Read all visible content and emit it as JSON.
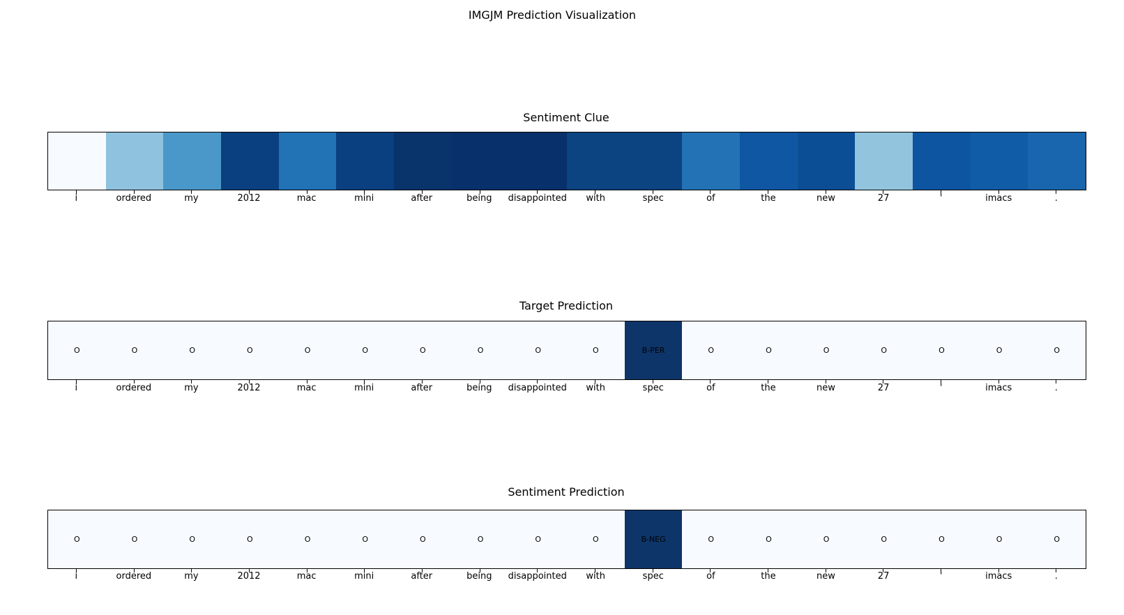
{
  "figure": {
    "suptitle": "IMGJM Prediction Visualization",
    "background": "#ffffff",
    "text_color": "#000000"
  },
  "tokens": [
    "i",
    "ordered",
    "my",
    "2012",
    "mac",
    "mini",
    "after",
    "being",
    "disappointed",
    "with",
    "spec",
    "of",
    "the",
    "new",
    "27",
    "'",
    "imacs",
    "."
  ],
  "panels": [
    {
      "title": "Sentiment Clue",
      "cells": [
        {
          "token": "i",
          "color": "#f7fbff",
          "label": ""
        },
        {
          "token": "ordered",
          "color": "#8fc2de",
          "label": ""
        },
        {
          "token": "my",
          "color": "#4a98c9",
          "label": ""
        },
        {
          "token": "2012",
          "color": "#0a4080",
          "label": ""
        },
        {
          "token": "mac",
          "color": "#2272b6",
          "label": ""
        },
        {
          "token": "mini",
          "color": "#0a4080",
          "label": ""
        },
        {
          "token": "after",
          "color": "#09336b",
          "label": ""
        },
        {
          "token": "being",
          "color": "#08306b",
          "label": ""
        },
        {
          "token": "disappointed",
          "color": "#08306b",
          "label": ""
        },
        {
          "token": "with",
          "color": "#0c4381",
          "label": ""
        },
        {
          "token": "spec",
          "color": "#0c4381",
          "label": ""
        },
        {
          "token": "of",
          "color": "#2372b5",
          "label": ""
        },
        {
          "token": "the",
          "color": "#1057a3",
          "label": ""
        },
        {
          "token": "new",
          "color": "#0b4e95",
          "label": ""
        },
        {
          "token": "27",
          "color": "#92c4de",
          "label": ""
        },
        {
          "token": "'",
          "color": "#0d55a1",
          "label": ""
        },
        {
          "token": "imacs",
          "color": "#115ca6",
          "label": ""
        },
        {
          "token": ".",
          "color": "#1a66ae",
          "label": ""
        }
      ]
    },
    {
      "title": "Target Prediction",
      "cells": [
        {
          "token": "i",
          "color": "#f7fbff",
          "label": "O"
        },
        {
          "token": "ordered",
          "color": "#f7fbff",
          "label": "O"
        },
        {
          "token": "my",
          "color": "#f7fbff",
          "label": "O"
        },
        {
          "token": "2012",
          "color": "#f7fbff",
          "label": "O"
        },
        {
          "token": "mac",
          "color": "#f7fbff",
          "label": "O"
        },
        {
          "token": "mini",
          "color": "#f7fbff",
          "label": "O"
        },
        {
          "token": "after",
          "color": "#f7fbff",
          "label": "O"
        },
        {
          "token": "being",
          "color": "#f7fbff",
          "label": "O"
        },
        {
          "token": "disappointed",
          "color": "#f7fbff",
          "label": "O"
        },
        {
          "token": "with",
          "color": "#f7fbff",
          "label": "O"
        },
        {
          "token": "spec",
          "color": "#0d3569",
          "label": "B-PER"
        },
        {
          "token": "of",
          "color": "#f7fbff",
          "label": "O"
        },
        {
          "token": "the",
          "color": "#f7fbff",
          "label": "O"
        },
        {
          "token": "new",
          "color": "#f7fbff",
          "label": "O"
        },
        {
          "token": "27",
          "color": "#f7fbff",
          "label": "O"
        },
        {
          "token": "'",
          "color": "#f7fbff",
          "label": "O"
        },
        {
          "token": "imacs",
          "color": "#f7fbff",
          "label": "O"
        },
        {
          "token": ".",
          "color": "#f7fbff",
          "label": "O"
        }
      ]
    },
    {
      "title": "Sentiment Prediction",
      "cells": [
        {
          "token": "i",
          "color": "#f7fbff",
          "label": "O"
        },
        {
          "token": "ordered",
          "color": "#f7fbff",
          "label": "O"
        },
        {
          "token": "my",
          "color": "#f7fbff",
          "label": "O"
        },
        {
          "token": "2012",
          "color": "#f7fbff",
          "label": "O"
        },
        {
          "token": "mac",
          "color": "#f7fbff",
          "label": "O"
        },
        {
          "token": "mini",
          "color": "#f7fbff",
          "label": "O"
        },
        {
          "token": "after",
          "color": "#f7fbff",
          "label": "O"
        },
        {
          "token": "being",
          "color": "#f7fbff",
          "label": "O"
        },
        {
          "token": "disappointed",
          "color": "#f7fbff",
          "label": "O"
        },
        {
          "token": "with",
          "color": "#f7fbff",
          "label": "O"
        },
        {
          "token": "spec",
          "color": "#0d3569",
          "label": "B-NEG"
        },
        {
          "token": "of",
          "color": "#f7fbff",
          "label": "O"
        },
        {
          "token": "the",
          "color": "#f7fbff",
          "label": "O"
        },
        {
          "token": "new",
          "color": "#f7fbff",
          "label": "O"
        },
        {
          "token": "27",
          "color": "#f7fbff",
          "label": "O"
        },
        {
          "token": "'",
          "color": "#f7fbff",
          "label": "O"
        },
        {
          "token": "imacs",
          "color": "#f7fbff",
          "label": "O"
        },
        {
          "token": ".",
          "color": "#f7fbff",
          "label": "O"
        }
      ]
    }
  ],
  "chart_data": {
    "type": "heatmap",
    "title": "IMGJM Prediction Visualization",
    "x_tokens": [
      "i",
      "ordered",
      "my",
      "2012",
      "mac",
      "mini",
      "after",
      "being",
      "disappointed",
      "with",
      "spec",
      "of",
      "the",
      "new",
      "27",
      "'",
      "imacs",
      "."
    ],
    "colormap": "Blues",
    "legend_position": "none",
    "grid": false,
    "subplots": [
      {
        "title": "Sentiment Clue",
        "kind": "intensity",
        "values_est_0_to_1": [
          0.02,
          0.4,
          0.56,
          0.93,
          0.73,
          0.93,
          0.99,
          1.0,
          1.0,
          0.9,
          0.9,
          0.73,
          0.83,
          0.88,
          0.39,
          0.84,
          0.82,
          0.76
        ],
        "cell_colors": [
          "#f7fbff",
          "#8fc2de",
          "#4a98c9",
          "#0a4080",
          "#2272b6",
          "#0a4080",
          "#09336b",
          "#08306b",
          "#08306b",
          "#0c4381",
          "#0c4381",
          "#2372b5",
          "#1057a3",
          "#0b4e95",
          "#92c4de",
          "#0d55a1",
          "#115ca6",
          "#1a66ae"
        ]
      },
      {
        "title": "Target Prediction",
        "kind": "labels",
        "labels": [
          "O",
          "O",
          "O",
          "O",
          "O",
          "O",
          "O",
          "O",
          "O",
          "O",
          "B-PER",
          "O",
          "O",
          "O",
          "O",
          "O",
          "O",
          "O"
        ],
        "highlight_token": "spec",
        "highlight_color": "#0d3569",
        "base_color": "#f7fbff"
      },
      {
        "title": "Sentiment Prediction",
        "kind": "labels",
        "labels": [
          "O",
          "O",
          "O",
          "O",
          "O",
          "O",
          "O",
          "O",
          "O",
          "O",
          "B-NEG",
          "O",
          "O",
          "O",
          "O",
          "O",
          "O",
          "O"
        ],
        "highlight_token": "spec",
        "highlight_color": "#0d3569",
        "base_color": "#f7fbff"
      }
    ]
  }
}
